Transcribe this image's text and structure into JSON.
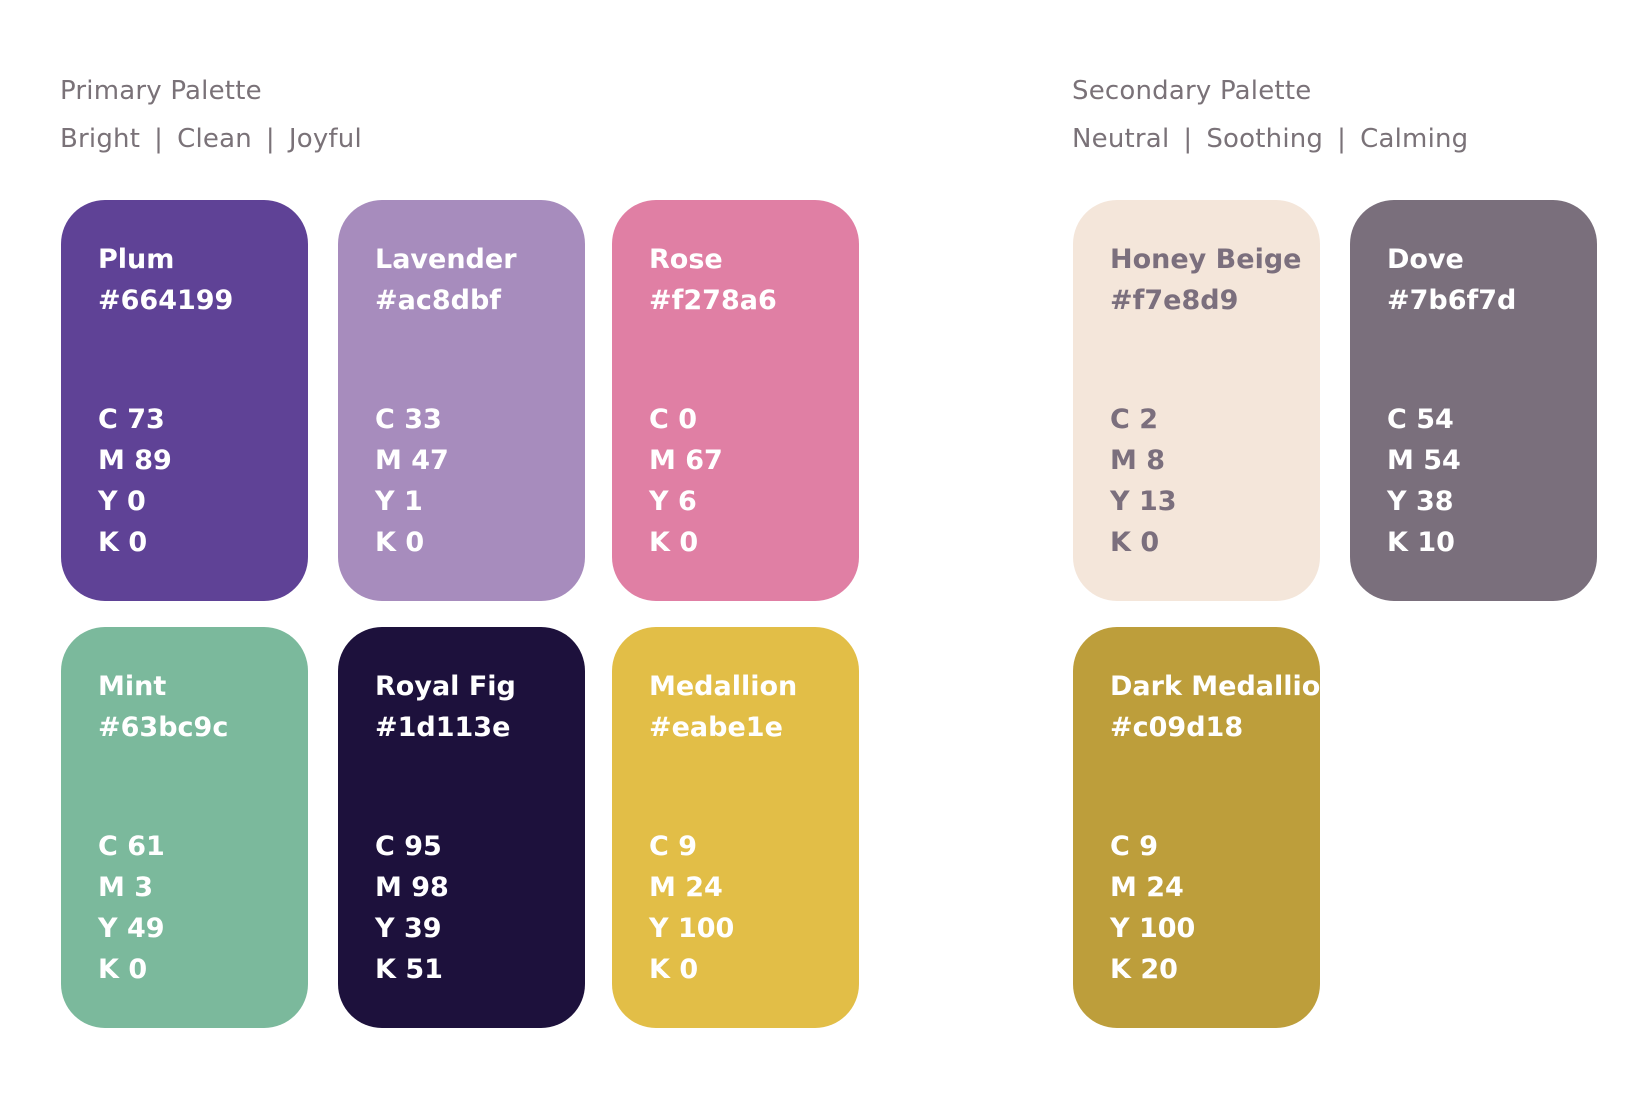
{
  "primary": {
    "title": "Primary Palette",
    "tags": [
      "Bright",
      "Clean",
      "Joyful"
    ],
    "separator": "|",
    "swatches": [
      {
        "name": "Plum",
        "hex": "#664199",
        "c": "C 73",
        "m": "M 89",
        "y": "Y 0",
        "k": "K 0",
        "color": "#5f4296"
      },
      {
        "name": "Lavender",
        "hex": "#ac8dbf",
        "c": "C 33",
        "m": "M 47",
        "y": "Y 1",
        "k": "K 0",
        "color": "#a78cbd"
      },
      {
        "name": "Rose",
        "hex": "#f278a6",
        "c": "C 0",
        "m": "M 67",
        "y": "Y 6",
        "k": "K 0",
        "color": "#e07fa4"
      },
      {
        "name": "Mint",
        "hex": "#63bc9c",
        "c": "C 61",
        "m": "M 3",
        "y": "Y 49",
        "k": "K 0",
        "color": "#7bb99c"
      },
      {
        "name": "Royal Fig",
        "hex": "#1d113e",
        "c": "C 95",
        "m": "M 98",
        "y": "Y 39",
        "k": "K 51",
        "color": "#1d113c"
      },
      {
        "name": "Medallion",
        "hex": "#eabe1e",
        "c": "C 9",
        "m": "M 24",
        "y": "Y 100",
        "k": "K 0",
        "color": "#e2be47"
      }
    ]
  },
  "secondary": {
    "title": "Secondary Palette",
    "tags": [
      "Neutral",
      "Soothing",
      "Calming"
    ],
    "separator": "|",
    "swatches": [
      {
        "name": "Honey Beige",
        "hex": "#f7e8d9",
        "c": "C 2",
        "m": "M 8",
        "y": "Y 13",
        "k": "K 0",
        "color": "#f4e6da"
      },
      {
        "name": "Dove",
        "hex": "#7b6f7d",
        "c": "C 54",
        "m": "M 54",
        "y": "Y 38",
        "k": "K 10",
        "color": "#7a6f7c"
      },
      {
        "name": "Dark Medallion",
        "hex": "#c09d18",
        "c": "C 9",
        "m": "M 24",
        "y": "Y 100",
        "k": "K 20",
        "color": "#bd9e3b"
      }
    ]
  }
}
